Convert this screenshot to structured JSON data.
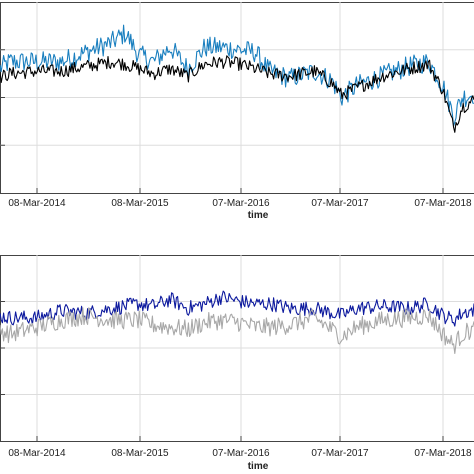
{
  "chart_data": [
    {
      "type": "line",
      "xlabel": "time",
      "x_ticks": [
        "08-Mar-2014",
        "08-Mar-2015",
        "07-Mar-2016",
        "07-Mar-2017",
        "07-Mar-2018"
      ],
      "grid": true,
      "legend": "none",
      "x_start": "2013-03-01",
      "x_end": "2018-07-10",
      "ylim": [
        0,
        4
      ],
      "y_ticks_unlabeled": [
        1,
        2,
        3
      ],
      "series": [
        {
          "color": "#1a7fbf",
          "x": [
            "2013-03-01",
            "2013-06-01",
            "2013-09-01",
            "2013-12-01",
            "2014-03-08",
            "2014-06-01",
            "2014-09-01",
            "2014-12-01",
            "2015-01-20",
            "2015-03-08",
            "2015-05-01",
            "2015-07-01",
            "2015-09-01",
            "2015-11-01",
            "2016-01-01",
            "2016-03-07",
            "2016-05-01",
            "2016-06-20",
            "2016-09-01",
            "2016-12-01",
            "2017-02-01",
            "2017-03-07",
            "2017-05-01",
            "2017-08-01",
            "2017-11-01",
            "2018-01-15",
            "2018-03-07",
            "2018-04-15",
            "2018-05-15",
            "2018-07-10"
          ],
          "y": [
            2.3,
            2.55,
            2.4,
            2.75,
            2.75,
            2.75,
            2.95,
            3.15,
            3.35,
            2.9,
            2.75,
            3.05,
            2.6,
            3.05,
            3.05,
            3.0,
            2.95,
            2.55,
            2.4,
            2.55,
            2.35,
            2.0,
            2.25,
            2.45,
            2.65,
            2.75,
            2.25,
            1.6,
            2.0,
            2.1
          ]
        },
        {
          "color": "#000000",
          "x": [
            "2013-03-01",
            "2013-06-01",
            "2013-09-01",
            "2013-12-01",
            "2014-03-08",
            "2014-06-01",
            "2014-09-01",
            "2014-12-01",
            "2015-01-20",
            "2015-03-08",
            "2015-05-01",
            "2015-07-01",
            "2015-09-01",
            "2015-11-01",
            "2016-01-01",
            "2016-03-07",
            "2016-05-01",
            "2016-06-20",
            "2016-09-01",
            "2016-12-01",
            "2017-02-01",
            "2017-03-07",
            "2017-05-01",
            "2017-08-01",
            "2017-11-01",
            "2018-01-15",
            "2018-03-07",
            "2018-04-15",
            "2018-05-15",
            "2018-07-10"
          ],
          "y": [
            2.2,
            2.35,
            2.3,
            2.5,
            2.55,
            2.55,
            2.65,
            2.75,
            2.7,
            2.6,
            2.5,
            2.6,
            2.45,
            2.7,
            2.75,
            2.7,
            2.6,
            2.5,
            2.45,
            2.55,
            2.3,
            2.05,
            2.2,
            2.45,
            2.6,
            2.7,
            2.15,
            1.35,
            1.8,
            2.0
          ]
        }
      ]
    },
    {
      "type": "line",
      "xlabel": "time",
      "x_ticks": [
        "08-Mar-2014",
        "08-Mar-2015",
        "07-Mar-2016",
        "07-Mar-2017",
        "07-Mar-2018"
      ],
      "grid": true,
      "legend": "none",
      "x_start": "2013-03-01",
      "x_end": "2018-07-10",
      "ylim": [
        0,
        4
      ],
      "y_ticks_unlabeled": [
        1,
        2,
        3
      ],
      "series": [
        {
          "color": "#0d1a9e",
          "x": [
            "2013-03-01",
            "2013-06-01",
            "2013-09-01",
            "2013-12-01",
            "2014-03-08",
            "2014-06-01",
            "2014-09-01",
            "2014-12-01",
            "2015-03-08",
            "2015-05-01",
            "2015-07-01",
            "2015-09-01",
            "2015-11-01",
            "2016-01-01",
            "2016-03-07",
            "2016-05-01",
            "2016-07-01",
            "2016-09-01",
            "2016-12-01",
            "2017-03-07",
            "2017-05-01",
            "2017-08-01",
            "2017-11-01",
            "2018-01-15",
            "2018-03-07",
            "2018-04-15",
            "2018-05-15",
            "2018-07-10"
          ],
          "y": [
            2.55,
            2.6,
            2.75,
            2.65,
            2.65,
            2.8,
            2.75,
            2.85,
            2.95,
            2.9,
            3.05,
            2.85,
            2.95,
            3.1,
            3.0,
            2.95,
            2.95,
            2.85,
            2.85,
            2.7,
            2.85,
            2.9,
            2.85,
            2.95,
            2.7,
            2.6,
            2.75,
            2.85
          ]
        },
        {
          "color": "#a8a8a8",
          "x": [
            "2013-03-01",
            "2013-06-01",
            "2013-09-01",
            "2013-12-01",
            "2014-03-08",
            "2014-06-01",
            "2014-09-01",
            "2014-12-01",
            "2015-03-08",
            "2015-05-01",
            "2015-07-01",
            "2015-09-01",
            "2015-11-01",
            "2016-01-01",
            "2016-03-07",
            "2016-05-01",
            "2016-07-01",
            "2016-09-01",
            "2016-12-01",
            "2017-03-07",
            "2017-05-01",
            "2017-08-01",
            "2017-11-01",
            "2018-01-15",
            "2018-03-07",
            "2018-04-15",
            "2018-05-15",
            "2018-07-10"
          ],
          "y": [
            2.25,
            2.35,
            2.5,
            2.3,
            2.45,
            2.6,
            2.7,
            2.6,
            2.6,
            2.5,
            2.45,
            2.4,
            2.55,
            2.6,
            2.55,
            2.45,
            2.45,
            2.5,
            2.65,
            2.25,
            2.45,
            2.6,
            2.65,
            2.7,
            2.3,
            2.05,
            2.3,
            2.45
          ]
        }
      ]
    }
  ]
}
